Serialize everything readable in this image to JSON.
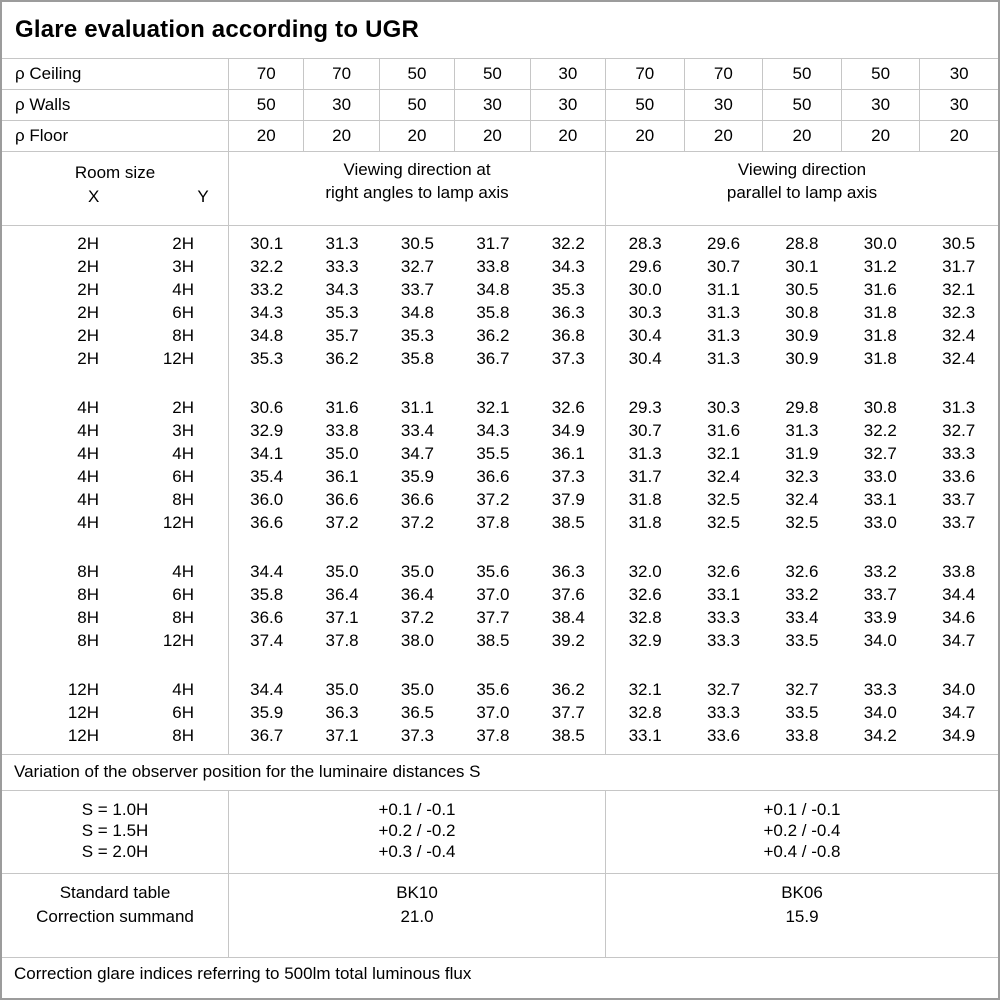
{
  "title": "Glare evaluation according to UGR",
  "reflectance_rows": [
    {
      "label": "ρ Ceiling",
      "values": [
        "70",
        "70",
        "50",
        "50",
        "30",
        "70",
        "70",
        "50",
        "50",
        "30"
      ]
    },
    {
      "label": "ρ Walls",
      "values": [
        "50",
        "30",
        "50",
        "30",
        "30",
        "50",
        "30",
        "50",
        "30",
        "30"
      ]
    },
    {
      "label": "ρ Floor",
      "values": [
        "20",
        "20",
        "20",
        "20",
        "20",
        "20",
        "20",
        "20",
        "20",
        "20"
      ]
    }
  ],
  "header": {
    "room_size_label": "Room size",
    "x_label": "X",
    "y_label": "Y",
    "group1_line1": "Viewing direction at",
    "group1_line2": "right angles to lamp axis",
    "group2_line1": "Viewing direction",
    "group2_line2": "parallel to lamp axis"
  },
  "ugr_blocks": [
    {
      "rows": [
        {
          "x": "2H",
          "y": "2H",
          "right_angle": [
            "30.1",
            "31.3",
            "30.5",
            "31.7",
            "32.2"
          ],
          "parallel": [
            "28.3",
            "29.6",
            "28.8",
            "30.0",
            "30.5"
          ]
        },
        {
          "x": "2H",
          "y": "3H",
          "right_angle": [
            "32.2",
            "33.3",
            "32.7",
            "33.8",
            "34.3"
          ],
          "parallel": [
            "29.6",
            "30.7",
            "30.1",
            "31.2",
            "31.7"
          ]
        },
        {
          "x": "2H",
          "y": "4H",
          "right_angle": [
            "33.2",
            "34.3",
            "33.7",
            "34.8",
            "35.3"
          ],
          "parallel": [
            "30.0",
            "31.1",
            "30.5",
            "31.6",
            "32.1"
          ]
        },
        {
          "x": "2H",
          "y": "6H",
          "right_angle": [
            "34.3",
            "35.3",
            "34.8",
            "35.8",
            "36.3"
          ],
          "parallel": [
            "30.3",
            "31.3",
            "30.8",
            "31.8",
            "32.3"
          ]
        },
        {
          "x": "2H",
          "y": "8H",
          "right_angle": [
            "34.8",
            "35.7",
            "35.3",
            "36.2",
            "36.8"
          ],
          "parallel": [
            "30.4",
            "31.3",
            "30.9",
            "31.8",
            "32.4"
          ]
        },
        {
          "x": "2H",
          "y": "12H",
          "right_angle": [
            "35.3",
            "36.2",
            "35.8",
            "36.7",
            "37.3"
          ],
          "parallel": [
            "30.4",
            "31.3",
            "30.9",
            "31.8",
            "32.4"
          ]
        }
      ]
    },
    {
      "rows": [
        {
          "x": "4H",
          "y": "2H",
          "right_angle": [
            "30.6",
            "31.6",
            "31.1",
            "32.1",
            "32.6"
          ],
          "parallel": [
            "29.3",
            "30.3",
            "29.8",
            "30.8",
            "31.3"
          ]
        },
        {
          "x": "4H",
          "y": "3H",
          "right_angle": [
            "32.9",
            "33.8",
            "33.4",
            "34.3",
            "34.9"
          ],
          "parallel": [
            "30.7",
            "31.6",
            "31.3",
            "32.2",
            "32.7"
          ]
        },
        {
          "x": "4H",
          "y": "4H",
          "right_angle": [
            "34.1",
            "35.0",
            "34.7",
            "35.5",
            "36.1"
          ],
          "parallel": [
            "31.3",
            "32.1",
            "31.9",
            "32.7",
            "33.3"
          ]
        },
        {
          "x": "4H",
          "y": "6H",
          "right_angle": [
            "35.4",
            "36.1",
            "35.9",
            "36.6",
            "37.3"
          ],
          "parallel": [
            "31.7",
            "32.4",
            "32.3",
            "33.0",
            "33.6"
          ]
        },
        {
          "x": "4H",
          "y": "8H",
          "right_angle": [
            "36.0",
            "36.6",
            "36.6",
            "37.2",
            "37.9"
          ],
          "parallel": [
            "31.8",
            "32.5",
            "32.4",
            "33.1",
            "33.7"
          ]
        },
        {
          "x": "4H",
          "y": "12H",
          "right_angle": [
            "36.6",
            "37.2",
            "37.2",
            "37.8",
            "38.5"
          ],
          "parallel": [
            "31.8",
            "32.5",
            "32.5",
            "33.0",
            "33.7"
          ]
        }
      ]
    },
    {
      "rows": [
        {
          "x": "8H",
          "y": "4H",
          "right_angle": [
            "34.4",
            "35.0",
            "35.0",
            "35.6",
            "36.3"
          ],
          "parallel": [
            "32.0",
            "32.6",
            "32.6",
            "33.2",
            "33.8"
          ]
        },
        {
          "x": "8H",
          "y": "6H",
          "right_angle": [
            "35.8",
            "36.4",
            "36.4",
            "37.0",
            "37.6"
          ],
          "parallel": [
            "32.6",
            "33.1",
            "33.2",
            "33.7",
            "34.4"
          ]
        },
        {
          "x": "8H",
          "y": "8H",
          "right_angle": [
            "36.6",
            "37.1",
            "37.2",
            "37.7",
            "38.4"
          ],
          "parallel": [
            "32.8",
            "33.3",
            "33.4",
            "33.9",
            "34.6"
          ]
        },
        {
          "x": "8H",
          "y": "12H",
          "right_angle": [
            "37.4",
            "37.8",
            "38.0",
            "38.5",
            "39.2"
          ],
          "parallel": [
            "32.9",
            "33.3",
            "33.5",
            "34.0",
            "34.7"
          ]
        }
      ]
    },
    {
      "rows": [
        {
          "x": "12H",
          "y": "4H",
          "right_angle": [
            "34.4",
            "35.0",
            "35.0",
            "35.6",
            "36.2"
          ],
          "parallel": [
            "32.1",
            "32.7",
            "32.7",
            "33.3",
            "34.0"
          ]
        },
        {
          "x": "12H",
          "y": "6H",
          "right_angle": [
            "35.9",
            "36.3",
            "36.5",
            "37.0",
            "37.7"
          ],
          "parallel": [
            "32.8",
            "33.3",
            "33.5",
            "34.0",
            "34.7"
          ]
        },
        {
          "x": "12H",
          "y": "8H",
          "right_angle": [
            "36.7",
            "37.1",
            "37.3",
            "37.8",
            "38.5"
          ],
          "parallel": [
            "33.1",
            "33.6",
            "33.8",
            "34.2",
            "34.9"
          ]
        }
      ]
    }
  ],
  "variation_note": "Variation of the observer position for the luminaire distances S",
  "variation": {
    "s_labels": [
      "S = 1.0H",
      "S = 1.5H",
      "S = 2.0H"
    ],
    "right_angle": [
      "+0.1 / -0.1",
      "+0.2 / -0.2",
      "+0.3 / -0.4"
    ],
    "parallel": [
      "+0.1 / -0.1",
      "+0.2 / -0.4",
      "+0.4 / -0.8"
    ]
  },
  "summary": {
    "standard_table_label": "Standard table",
    "correction_summand_label": "Correction summand",
    "standard_table_right_angle": "BK10",
    "standard_table_parallel": "BK06",
    "correction_summand_right_angle": "21.0",
    "correction_summand_parallel": "15.9"
  },
  "footer_note": "Correction glare indices referring to 500lm total luminous flux",
  "colors": {
    "border": "#c6c6c6",
    "outer_border": "#9c9c9c",
    "text": "#000000",
    "background": "#ffffff"
  }
}
